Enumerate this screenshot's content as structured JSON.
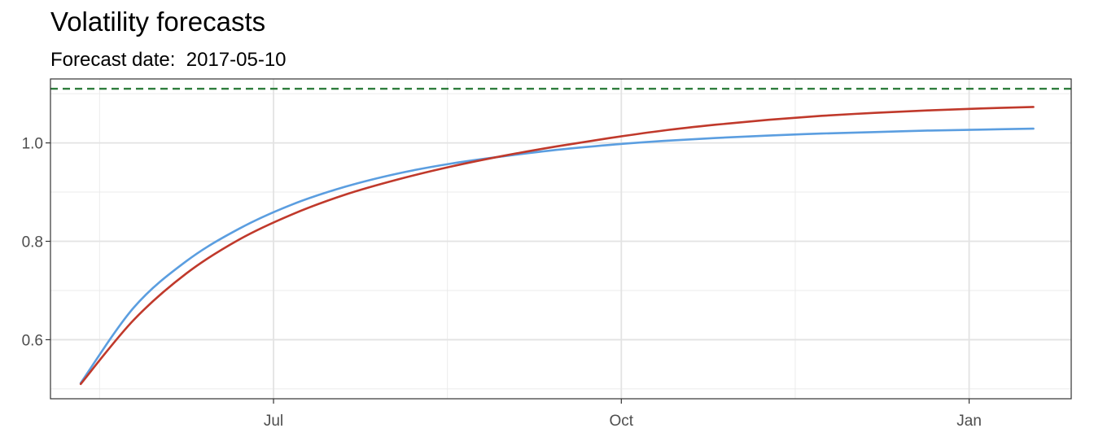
{
  "header": {
    "title": "Volatility forecasts",
    "subtitle": "Forecast date:  2017-05-10"
  },
  "chart_data": {
    "type": "line",
    "title": "Volatility forecasts",
    "subtitle": "Forecast date:  2017-05-10",
    "xlabel": "",
    "ylabel": "",
    "x_axis": {
      "type": "date",
      "range": [
        "2017-05-03",
        "2018-01-28"
      ],
      "major_ticks": [
        "2017-07-01",
        "2017-10-01",
        "2018-01-01"
      ],
      "tick_labels": [
        "Jul",
        "Oct",
        "Jan"
      ],
      "minor_grid": [
        "2017-05-16",
        "2017-08-16",
        "2017-11-16"
      ]
    },
    "y_axis": {
      "range": [
        0.48,
        1.13
      ],
      "ticks": [
        0.6,
        0.8,
        1.0
      ],
      "tick_labels": [
        "0.6",
        "0.8",
        "1.0"
      ]
    },
    "grid": true,
    "legend": "none",
    "reference_line": {
      "y": 1.11,
      "style": "dashed",
      "color": "#2e7d3c"
    },
    "series": [
      {
        "color": "#5b9ee0",
        "x": [
          "2017-05-11",
          "2017-05-25",
          "2017-06-08",
          "2017-06-22",
          "2017-07-06",
          "2017-07-20",
          "2017-08-03",
          "2017-08-17",
          "2017-08-31",
          "2017-09-14",
          "2017-09-28",
          "2017-10-12",
          "2017-10-26",
          "2017-11-09",
          "2017-11-23",
          "2017-12-07",
          "2017-12-21",
          "2018-01-04",
          "2018-01-18"
        ],
        "values": [
          0.512,
          0.665,
          0.76,
          0.826,
          0.875,
          0.911,
          0.938,
          0.958,
          0.973,
          0.986,
          0.996,
          1.004,
          1.01,
          1.015,
          1.019,
          1.022,
          1.025,
          1.027,
          1.029
        ]
      },
      {
        "color": "#c0392b",
        "x": [
          "2017-05-11",
          "2017-05-25",
          "2017-06-08",
          "2017-06-22",
          "2017-07-06",
          "2017-07-20",
          "2017-08-03",
          "2017-08-17",
          "2017-08-31",
          "2017-09-14",
          "2017-09-28",
          "2017-10-12",
          "2017-10-26",
          "2017-11-09",
          "2017-11-23",
          "2017-12-07",
          "2017-12-21",
          "2018-01-04",
          "2018-01-18"
        ],
        "values": [
          0.51,
          0.64,
          0.735,
          0.804,
          0.855,
          0.895,
          0.926,
          0.952,
          0.974,
          0.993,
          1.01,
          1.025,
          1.037,
          1.047,
          1.055,
          1.061,
          1.066,
          1.07,
          1.073
        ]
      }
    ]
  }
}
